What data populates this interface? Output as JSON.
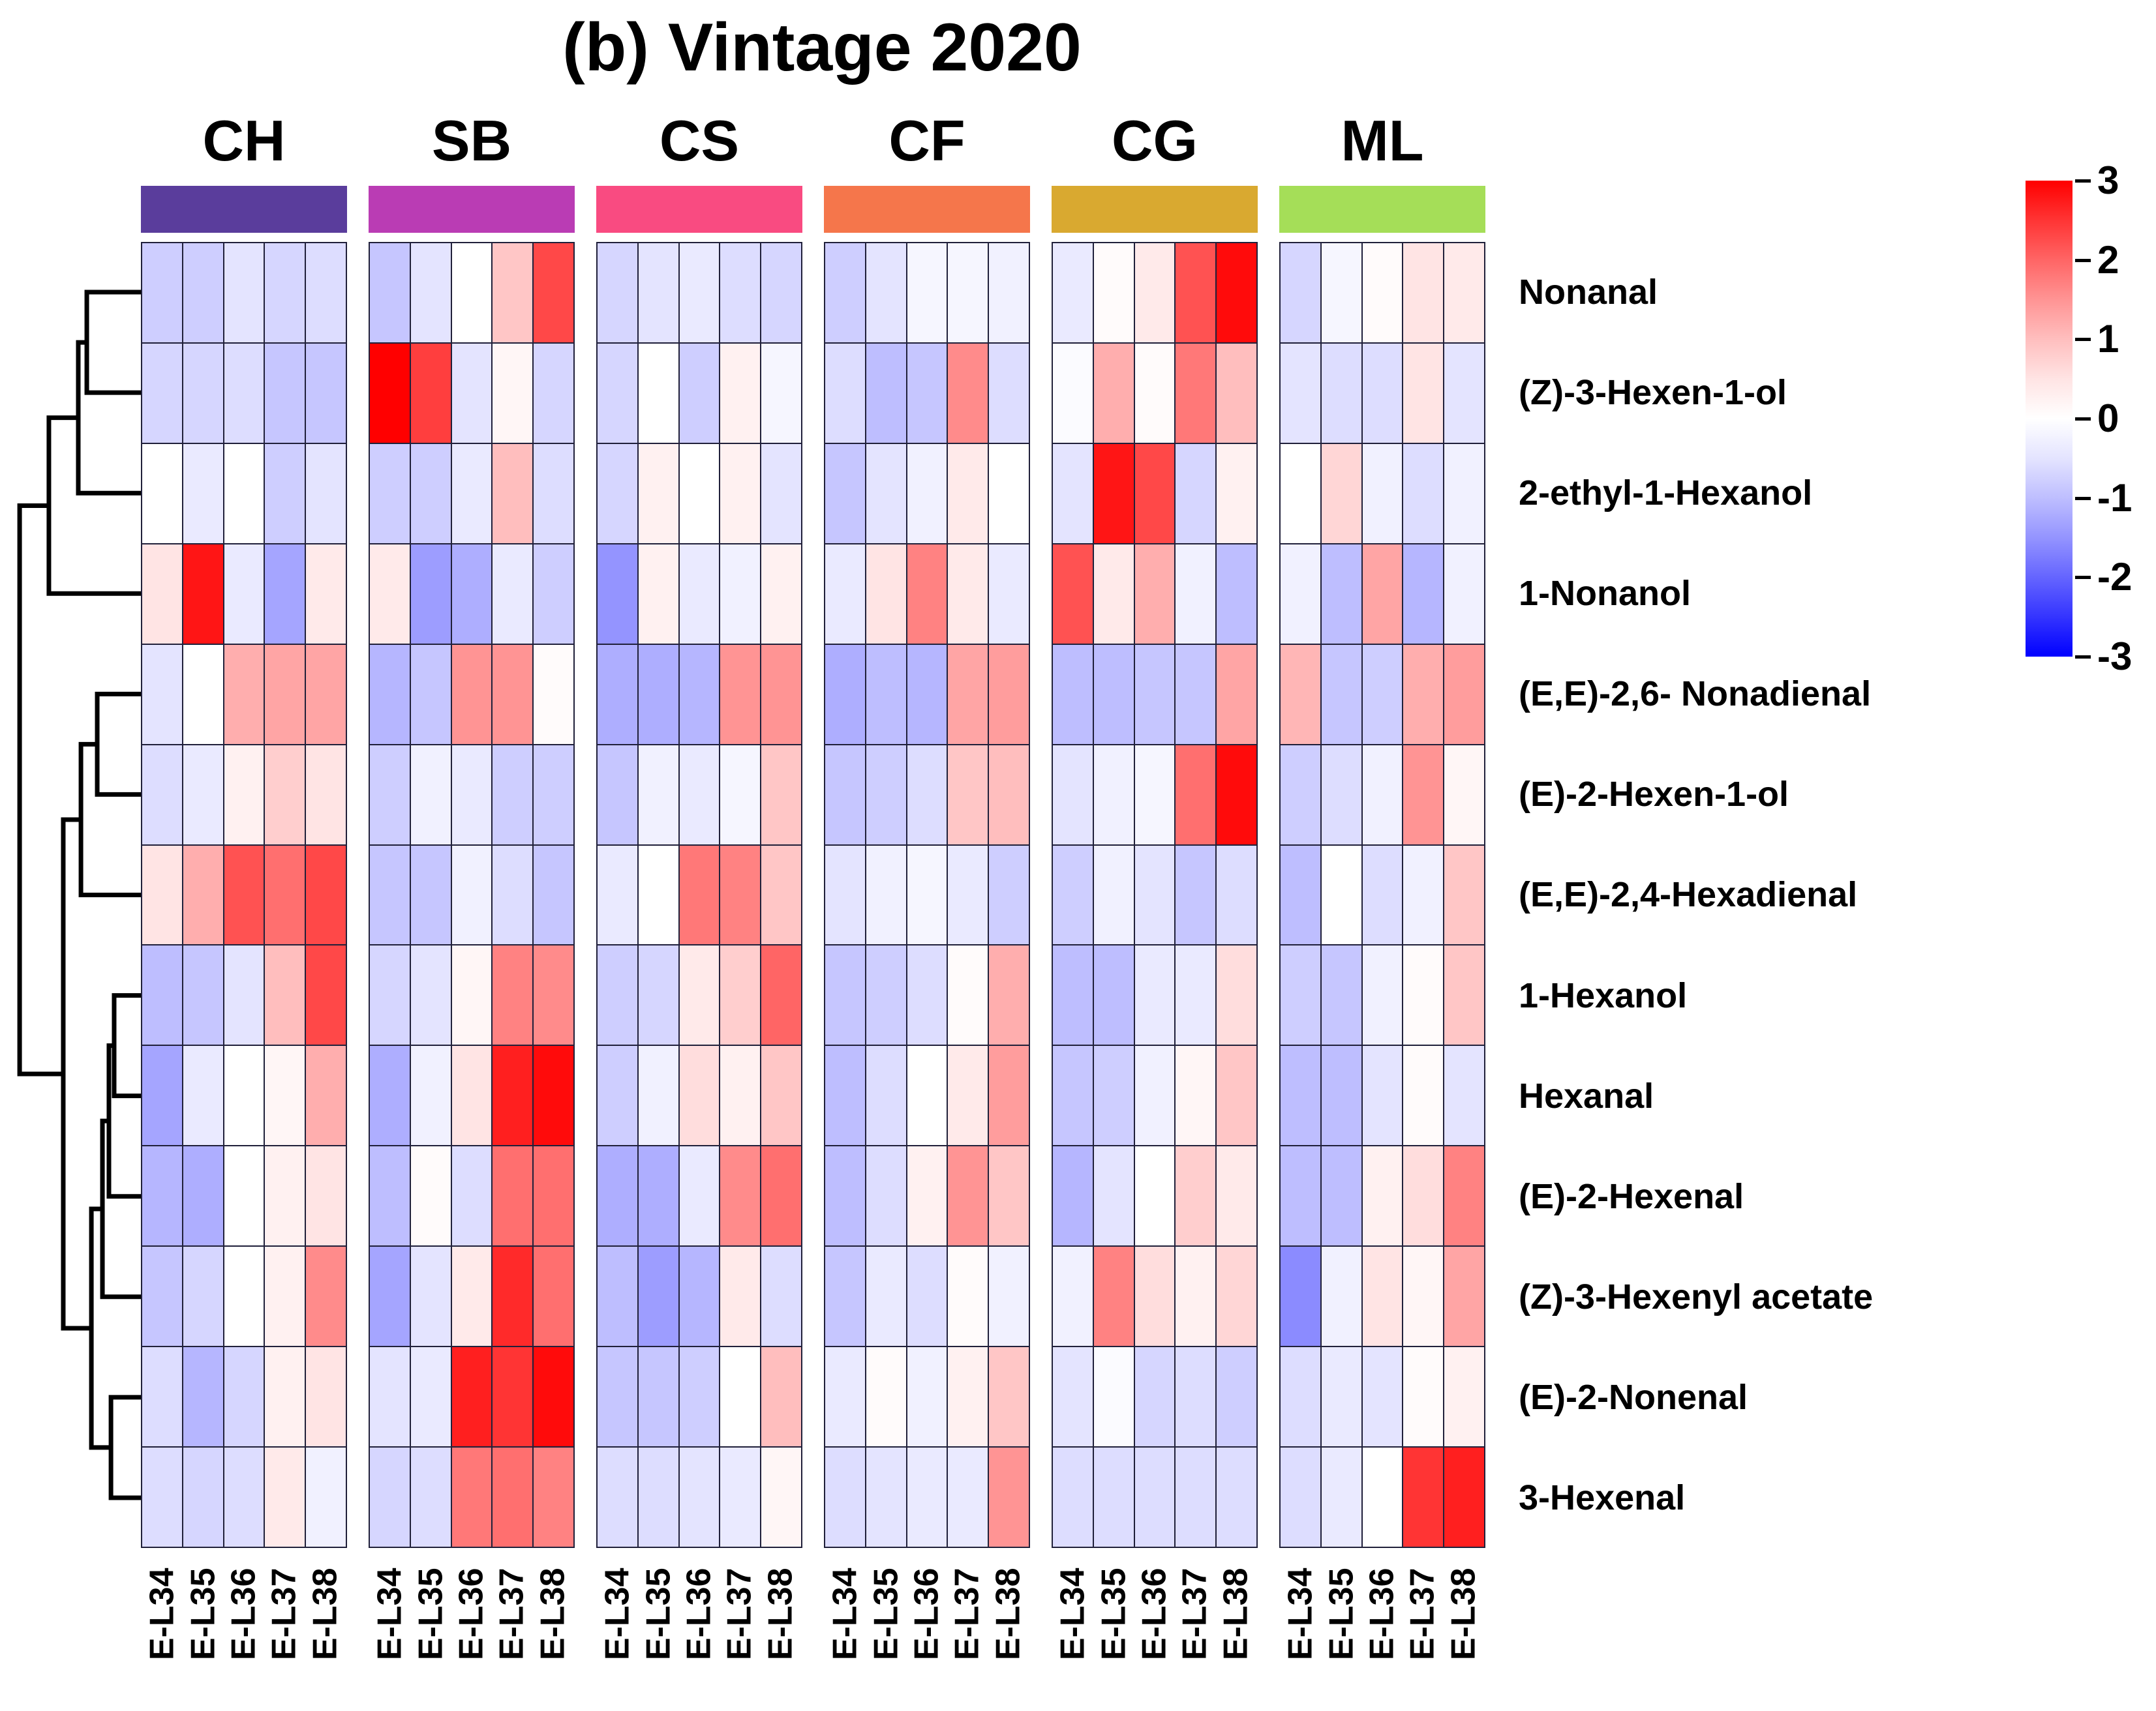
{
  "chart_data": {
    "type": "heatmap",
    "title": "(b) Vintage 2020",
    "value_range": [
      -3,
      3
    ],
    "colormap": {
      "negative": "#0000ff",
      "zero": "#ffffff",
      "positive": "#ff0000"
    },
    "legend_ticks": [
      "3",
      "2",
      "1",
      "0",
      "-1",
      "-2",
      "-3"
    ],
    "legend_position": "right",
    "col_groups": [
      {
        "label": "CH",
        "color": "#5a3d9c"
      },
      {
        "label": "SB",
        "color": "#ba3cb4"
      },
      {
        "label": "CS",
        "color": "#f94b81"
      },
      {
        "label": "CF",
        "color": "#f5764b"
      },
      {
        "label": "CG",
        "color": "#d9a930"
      },
      {
        "label": "ML",
        "color": "#a5de58"
      }
    ],
    "col_labels": [
      "E-L34",
      "E-L35",
      "E-L36",
      "E-L37",
      "E-L38"
    ],
    "row_labels": [
      "Nonanal",
      "(Z)-3-Hexen-1-ol",
      "2-ethyl-1-Hexanol",
      "1-Nonanol",
      "(E,E)-2,6- Nonadienal",
      "(E)-2-Hexen-1-ol",
      "(E,E)-2,4-Hexadienal",
      "1-Hexanol",
      "Hexanal",
      "(E)-2-Hexenal",
      "(Z)-3-Hexenyl acetate",
      "(E)-2-Nonenal",
      "3-Hexenal"
    ],
    "values": [
      [
        -0.8,
        -0.8,
        -0.5,
        -0.7,
        -0.6,
        -0.9,
        -0.5,
        0,
        0.9,
        2.3,
        -0.7,
        -0.5,
        -0.4,
        -0.6,
        -0.7,
        -0.8,
        -0.5,
        -0.2,
        -0.2,
        -0.3,
        -0.4,
        0.1,
        0.4,
        2.2,
        2.9,
        -0.7,
        -0.2,
        0.1,
        0.5,
        0.4
      ],
      [
        -0.7,
        -0.7,
        -0.6,
        -0.9,
        -0.9,
        3,
        2.4,
        -0.5,
        0.2,
        -0.7,
        -0.7,
        0,
        -0.8,
        0.3,
        -0.2,
        -0.6,
        -1,
        -0.9,
        1.6,
        -0.6,
        -0.1,
        1.2,
        0.1,
        1.8,
        1,
        -0.5,
        -0.6,
        -0.6,
        0.5,
        -0.5
      ],
      [
        0,
        -0.4,
        0,
        -0.8,
        -0.5,
        -0.8,
        -0.8,
        -0.4,
        1,
        -0.6,
        -0.7,
        0.3,
        0,
        0.3,
        -0.5,
        -0.9,
        -0.5,
        -0.3,
        0.4,
        0,
        -0.5,
        2.8,
        2.3,
        -0.7,
        0.3,
        0,
        0.7,
        -0.3,
        -0.6,
        -0.3
      ],
      [
        0.5,
        2.8,
        -0.4,
        -1.3,
        0.4,
        0.4,
        -1.4,
        -1.2,
        -0.4,
        -0.8,
        -1.5,
        0.3,
        -0.4,
        -0.3,
        0.3,
        -0.4,
        0.5,
        1.7,
        0.4,
        -0.4,
        2.2,
        0.4,
        1.2,
        -0.3,
        -1,
        -0.3,
        -1,
        1.3,
        -1.1,
        -0.3
      ],
      [
        -0.5,
        0,
        1.2,
        1.3,
        1.3,
        -1.1,
        -0.9,
        1.5,
        1.5,
        0.1,
        -1.2,
        -1.2,
        -1.1,
        1.5,
        1.5,
        -1.2,
        -1,
        -1.1,
        1.3,
        1.4,
        -1,
        -1,
        -0.9,
        -0.9,
        1.3,
        1.1,
        -0.9,
        -0.8,
        1.2,
        1.4
      ],
      [
        -0.6,
        -0.4,
        0.3,
        0.8,
        0.5,
        -0.8,
        -0.3,
        -0.4,
        -0.8,
        -0.8,
        -0.9,
        -0.3,
        -0.4,
        -0.2,
        0.9,
        -0.9,
        -0.8,
        -0.6,
        0.9,
        1,
        -0.5,
        -0.3,
        -0.2,
        1.9,
        2.9,
        -0.8,
        -0.6,
        -0.3,
        1.5,
        0.2
      ],
      [
        0.5,
        1.2,
        2.2,
        1.9,
        2.3,
        -0.9,
        -0.9,
        -0.3,
        -0.6,
        -0.9,
        -0.4,
        0,
        1.8,
        1.7,
        0.9,
        -0.5,
        -0.3,
        -0.2,
        -0.4,
        -0.8,
        -0.8,
        -0.3,
        -0.5,
        -0.9,
        -0.6,
        -1,
        0,
        -0.6,
        -0.3,
        0.9
      ],
      [
        -1,
        -0.9,
        -0.5,
        1,
        2.3,
        -0.7,
        -0.5,
        0.2,
        1.7,
        1.6,
        -0.8,
        -0.7,
        0.4,
        0.8,
        2,
        -0.9,
        -0.8,
        -0.6,
        0.1,
        1.2,
        -1,
        -1,
        -0.4,
        -0.4,
        0.6,
        -0.8,
        -0.9,
        -0.3,
        0.1,
        0.9
      ],
      [
        -1.3,
        -0.4,
        0,
        0.2,
        1.2,
        -1.2,
        -0.3,
        0.5,
        2.7,
        2.9,
        -0.8,
        -0.3,
        0.6,
        0.3,
        0.9,
        -1,
        -0.6,
        0,
        0.4,
        1.4,
        -0.9,
        -0.8,
        -0.3,
        0.2,
        0.9,
        -1,
        -1,
        -0.5,
        0.1,
        -0.5
      ],
      [
        -1.1,
        -1.2,
        0,
        0.3,
        0.5,
        -1,
        0.1,
        -0.6,
        1.9,
        1.9,
        -1.2,
        -1.2,
        -0.4,
        1.6,
        1.9,
        -1,
        -0.6,
        0.3,
        1.5,
        0.9,
        -1.1,
        -0.5,
        0,
        0.8,
        0.4,
        -1,
        -1,
        0.3,
        0.6,
        1.7
      ],
      [
        -0.9,
        -0.7,
        0,
        0.3,
        1.6,
        -1.3,
        -0.5,
        0.4,
        2.6,
        1.9,
        -1,
        -1.4,
        -1.1,
        0.4,
        -0.6,
        -0.9,
        -0.4,
        -0.6,
        0.1,
        -0.3,
        -0.3,
        1.7,
        0.6,
        0.3,
        0.7,
        -1.6,
        -0.3,
        0.5,
        0.2,
        1.3
      ],
      [
        -0.6,
        -1.1,
        -0.7,
        0.3,
        0.5,
        -0.5,
        -0.4,
        2.7,
        2.5,
        2.9,
        -0.9,
        -0.9,
        -0.8,
        0,
        1,
        -0.4,
        0.1,
        -0.3,
        0.3,
        0.9,
        -0.5,
        -0.1,
        -0.7,
        -0.6,
        -0.8,
        -0.6,
        -0.4,
        -0.5,
        0.1,
        0.3
      ],
      [
        -0.6,
        -0.7,
        -0.6,
        0.4,
        -0.3,
        -0.7,
        -0.6,
        1.8,
        1.9,
        1.7,
        -0.6,
        -0.6,
        -0.5,
        -0.4,
        0.2,
        -0.6,
        -0.5,
        -0.4,
        -0.4,
        1.5,
        -0.6,
        -0.6,
        -0.6,
        -0.6,
        -0.6,
        -0.6,
        -0.4,
        0,
        2.5,
        2.7
      ]
    ],
    "dendrogram": {
      "merges": [
        {
          "id": "m0",
          "a": 0,
          "b": 1,
          "h": 0.41
        },
        {
          "id": "m1",
          "a": "m0",
          "b": 2,
          "h": 0.477
        },
        {
          "id": "m2",
          "a": "m1",
          "b": 3,
          "h": 0.708
        },
        {
          "id": "m3",
          "a": 4,
          "b": 5,
          "h": 0.328
        },
        {
          "id": "m4",
          "a": "m3",
          "b": 6,
          "h": 0.456
        },
        {
          "id": "m5",
          "a": 7,
          "b": 8,
          "h": 0.195
        },
        {
          "id": "m6",
          "a": "m5",
          "b": 9,
          "h": 0.236
        },
        {
          "id": "m7",
          "a": "m6",
          "b": 10,
          "h": 0.287
        },
        {
          "id": "m8",
          "a": 11,
          "b": 12,
          "h": 0.22
        },
        {
          "id": "m9",
          "a": "m7",
          "b": "m8",
          "h": 0.374
        },
        {
          "id": "m10",
          "a": "m4",
          "b": "m9",
          "h": 0.595
        },
        {
          "id": "m11",
          "a": "m2",
          "b": "m10",
          "h": 0.938
        }
      ]
    }
  }
}
